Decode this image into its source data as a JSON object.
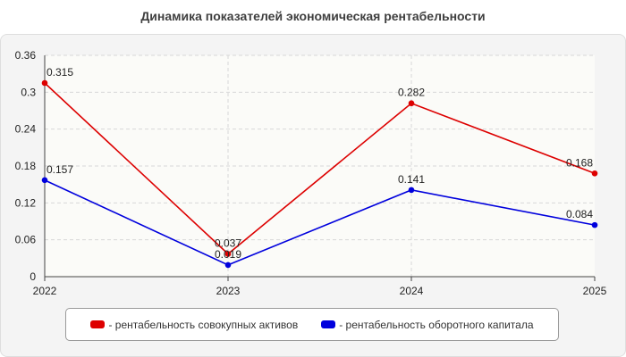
{
  "chart_data": {
    "type": "line",
    "title": "Динамика показателей экономическая рентабельности",
    "x": [
      "2022",
      "2023",
      "2024",
      "2025"
    ],
    "ylim": [
      0,
      0.36
    ],
    "yticks": [
      "0",
      "0.06",
      "0.12",
      "0.18",
      "0.24",
      "0.3",
      "0.36"
    ],
    "grid": true,
    "legend_position": "bottom",
    "series": [
      {
        "name": "- рентабельность совокупных активов",
        "color": "#dd0000",
        "values": [
          0.315,
          0.037,
          0.282,
          0.168
        ],
        "labels": [
          "0.315",
          "0.037",
          "0.282",
          "0.168"
        ]
      },
      {
        "name": "- рентабельность оборотного капитала",
        "color": "#0000dd",
        "values": [
          0.157,
          0.019,
          0.141,
          0.084
        ],
        "labels": [
          "0.157",
          "0.019",
          "0.141",
          "0.084"
        ]
      }
    ]
  }
}
